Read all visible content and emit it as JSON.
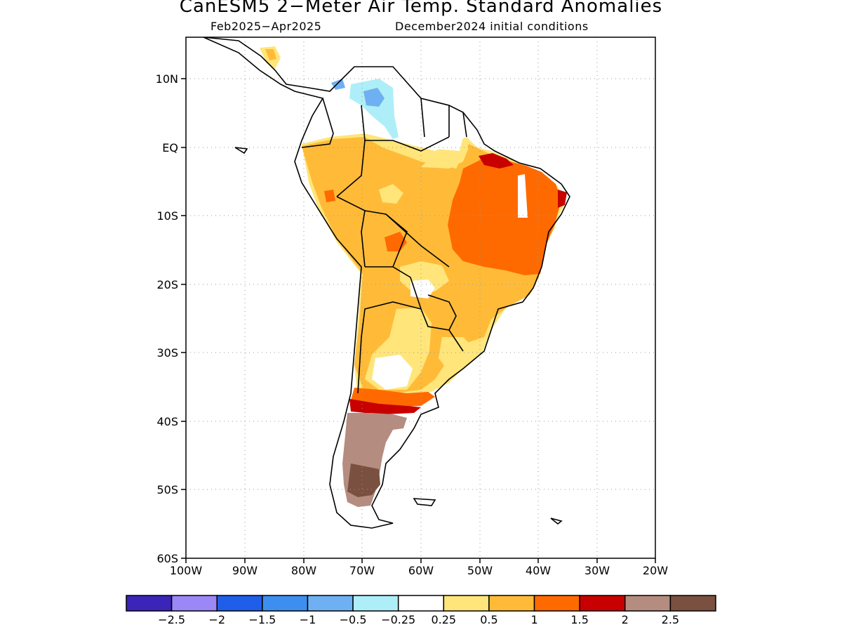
{
  "title": "CanESM5 2−Meter Air Temp. Standard Anomalies",
  "subtitle_left": "Feb2025−Apr2025",
  "subtitle_right": "December2024 initial conditions",
  "map": {
    "region": "South America",
    "lon_range": [
      -100,
      -20
    ],
    "lat_range": [
      -60,
      15
    ],
    "grid": true,
    "lon_ticks": [
      "100W",
      "90W",
      "80W",
      "70W",
      "60W",
      "50W",
      "40W",
      "30W",
      "20W"
    ],
    "lat_ticks": [
      "10N",
      "EQ",
      "10S",
      "20S",
      "30S",
      "40S",
      "50S",
      "60S"
    ]
  },
  "colorbar": {
    "labels": [
      "−2.5",
      "−2",
      "−1.5",
      "−1",
      "−0.5",
      "−0.25",
      "0.25",
      "0.5",
      "1",
      "1.5",
      "2",
      "2.5"
    ],
    "colors": [
      "#3b24b8",
      "#9b87f5",
      "#1f5ee8",
      "#3d8fef",
      "#6fb0f2",
      "#aeeef8",
      "#ffffff",
      "#ffe57a",
      "#ffbb38",
      "#ff6a00",
      "#c80000",
      "#b58c80",
      "#7a5040"
    ]
  }
}
